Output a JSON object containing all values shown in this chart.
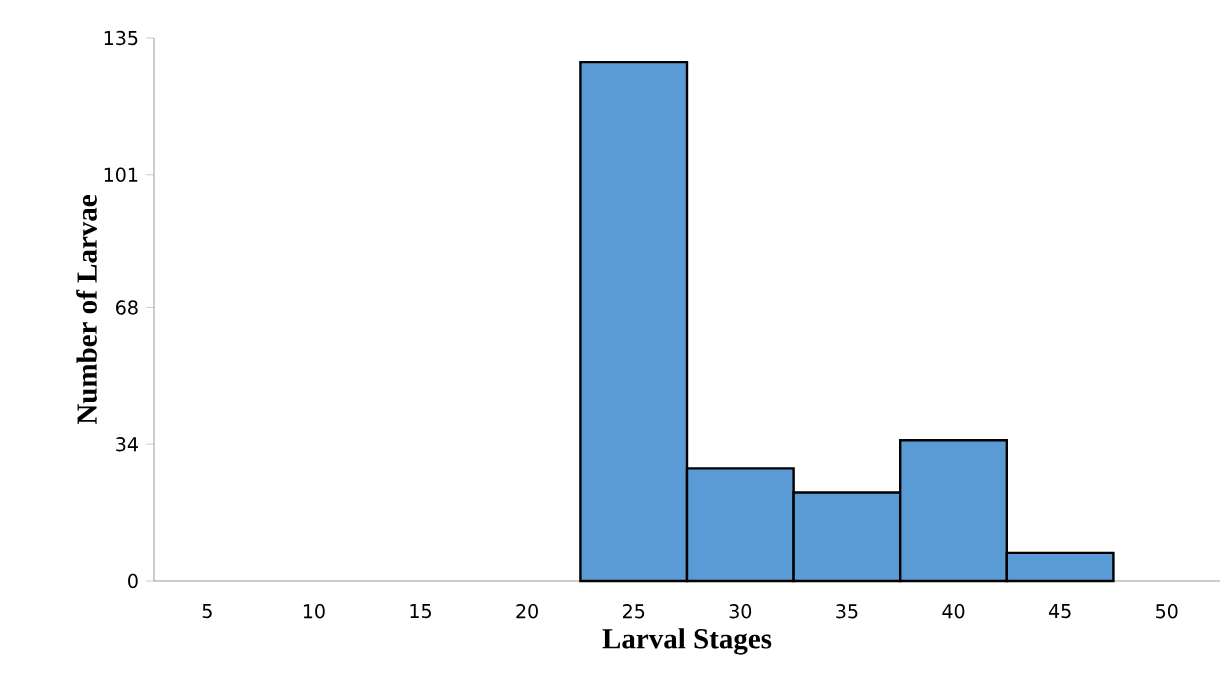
{
  "chart_data": {
    "type": "bar",
    "xlabel": "Larval Stages",
    "ylabel": "Number of Larvae",
    "categories": [
      "5",
      "10",
      "15",
      "20",
      "25",
      "30",
      "35",
      "40",
      "45",
      "50"
    ],
    "values": [
      null,
      null,
      null,
      null,
      129,
      28,
      22,
      35,
      7,
      null
    ],
    "color": "#5b9bd5",
    "ylim": [
      0,
      135
    ],
    "yticks": [
      0,
      34,
      68,
      101,
      135
    ]
  }
}
